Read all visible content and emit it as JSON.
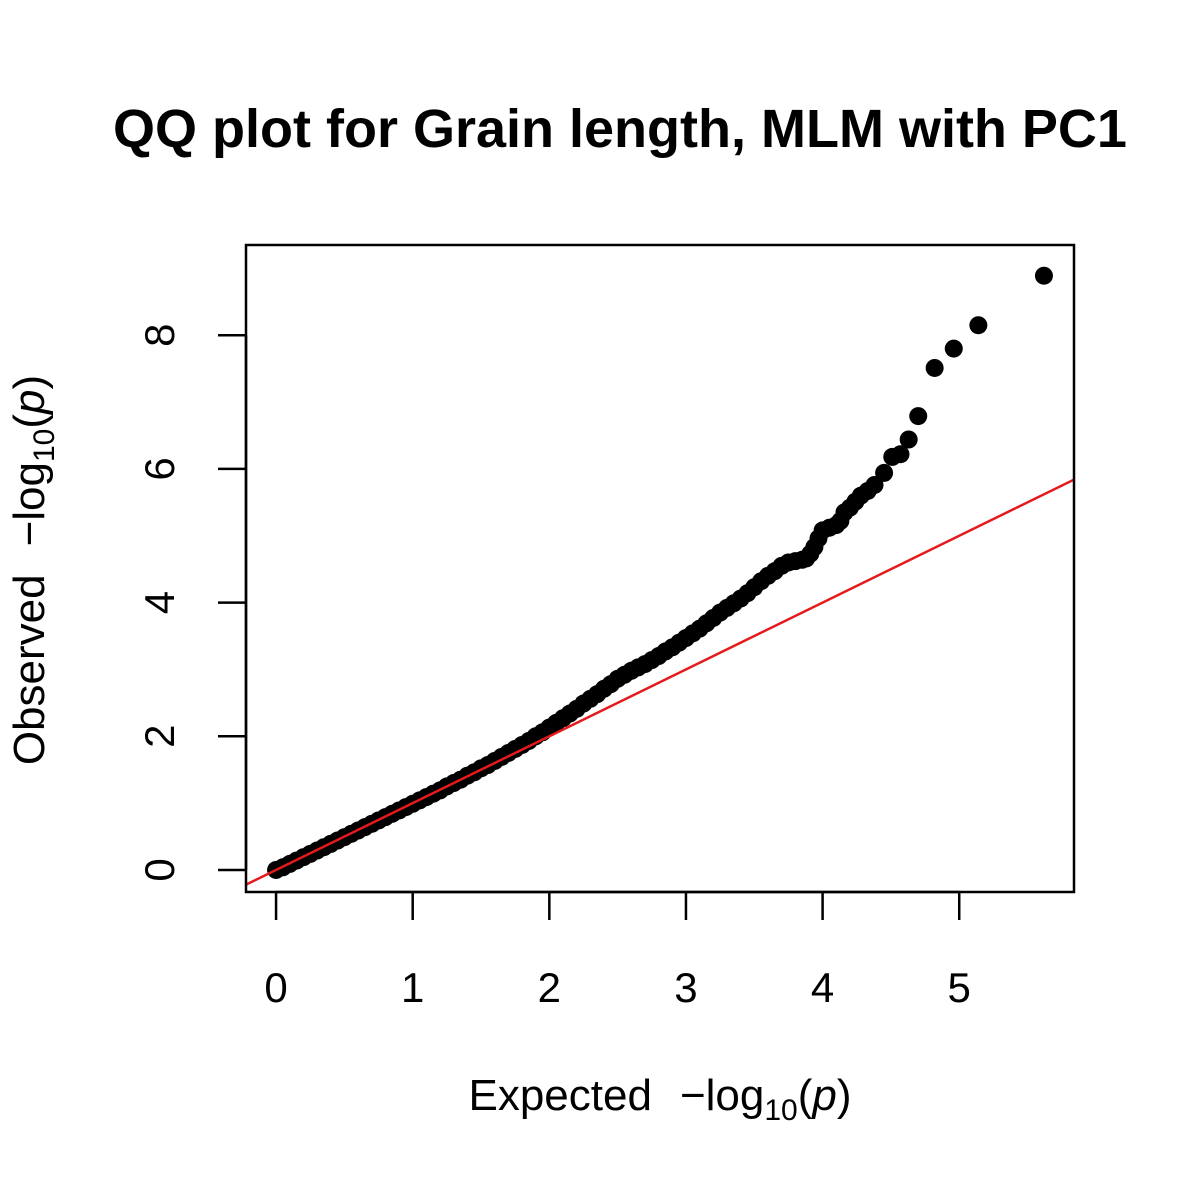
{
  "chart_data": {
    "type": "scatter",
    "title": "QQ plot for Grain length, MLM with PC1",
    "xlabel": {
      "prefix": "Expected",
      "minus": "−",
      "log": "log",
      "base": "10",
      "open": "(",
      "var": "p",
      "close": ")"
    },
    "ylabel": {
      "prefix": "Observed",
      "minus": "−",
      "log": "log",
      "base": "10",
      "open": "(",
      "var": "p",
      "close": ")"
    },
    "xlim": [
      -0.22,
      5.84
    ],
    "ylim": [
      -0.33,
      9.35
    ],
    "xticks": [
      0,
      1,
      2,
      3,
      4,
      5
    ],
    "yticks": [
      0,
      2,
      4,
      6,
      8
    ],
    "grid": false,
    "reference_line": {
      "slope": 1,
      "intercept": 0,
      "color": "#e41a1c"
    },
    "point_color": "#000000",
    "series": [
      {
        "values": [
          [
            0.0,
            0.0
          ],
          [
            0.05,
            0.04
          ],
          [
            0.1,
            0.09
          ],
          [
            0.15,
            0.14
          ],
          [
            0.2,
            0.19
          ],
          [
            0.25,
            0.24
          ],
          [
            0.3,
            0.29
          ],
          [
            0.35,
            0.34
          ],
          [
            0.4,
            0.39
          ],
          [
            0.45,
            0.44
          ],
          [
            0.5,
            0.49
          ],
          [
            0.55,
            0.54
          ],
          [
            0.6,
            0.59
          ],
          [
            0.65,
            0.64
          ],
          [
            0.7,
            0.69
          ],
          [
            0.75,
            0.74
          ],
          [
            0.8,
            0.79
          ],
          [
            0.85,
            0.84
          ],
          [
            0.9,
            0.89
          ],
          [
            0.95,
            0.94
          ],
          [
            1.0,
            0.99
          ],
          [
            1.05,
            1.04
          ],
          [
            1.1,
            1.09
          ],
          [
            1.15,
            1.14
          ],
          [
            1.2,
            1.19
          ],
          [
            1.25,
            1.25
          ],
          [
            1.3,
            1.3
          ],
          [
            1.35,
            1.35
          ],
          [
            1.4,
            1.41
          ],
          [
            1.45,
            1.46
          ],
          [
            1.5,
            1.52
          ],
          [
            1.55,
            1.57
          ],
          [
            1.6,
            1.63
          ],
          [
            1.65,
            1.69
          ],
          [
            1.7,
            1.75
          ],
          [
            1.75,
            1.81
          ],
          [
            1.8,
            1.87
          ],
          [
            1.85,
            1.93
          ],
          [
            1.9,
            2.0
          ],
          [
            1.95,
            2.06
          ],
          [
            2.0,
            2.13
          ],
          [
            2.05,
            2.2
          ],
          [
            2.1,
            2.27
          ],
          [
            2.15,
            2.34
          ],
          [
            2.2,
            2.41
          ],
          [
            2.25,
            2.49
          ],
          [
            2.3,
            2.56
          ],
          [
            2.35,
            2.63
          ],
          [
            2.4,
            2.71
          ],
          [
            2.45,
            2.78
          ],
          [
            2.5,
            2.86
          ],
          [
            2.55,
            2.92
          ],
          [
            2.6,
            2.98
          ],
          [
            2.65,
            3.03
          ],
          [
            2.7,
            3.08
          ],
          [
            2.75,
            3.14
          ],
          [
            2.8,
            3.2
          ],
          [
            2.85,
            3.27
          ],
          [
            2.9,
            3.33
          ],
          [
            2.95,
            3.4
          ],
          [
            3.0,
            3.47
          ],
          [
            3.05,
            3.54
          ],
          [
            3.1,
            3.61
          ],
          [
            3.15,
            3.69
          ],
          [
            3.2,
            3.77
          ],
          [
            3.25,
            3.85
          ],
          [
            3.3,
            3.92
          ],
          [
            3.35,
            3.99
          ],
          [
            3.4,
            4.06
          ],
          [
            3.45,
            4.14
          ],
          [
            3.5,
            4.23
          ],
          [
            3.55,
            4.32
          ],
          [
            3.6,
            4.4
          ],
          [
            3.65,
            4.47
          ],
          [
            3.7,
            4.55
          ],
          [
            3.75,
            4.6
          ],
          [
            3.8,
            4.62
          ],
          [
            3.85,
            4.64
          ],
          [
            3.88,
            4.66
          ],
          [
            3.91,
            4.73
          ],
          [
            3.94,
            4.83
          ],
          [
            3.97,
            4.96
          ],
          [
            4.0,
            5.08
          ],
          [
            4.05,
            5.12
          ],
          [
            4.1,
            5.16
          ],
          [
            4.13,
            5.22
          ],
          [
            4.16,
            5.35
          ],
          [
            4.2,
            5.42
          ],
          [
            4.24,
            5.51
          ],
          [
            4.28,
            5.6
          ],
          [
            4.33,
            5.67
          ],
          [
            4.38,
            5.76
          ],
          [
            4.45,
            5.94
          ],
          [
            4.51,
            6.18
          ],
          [
            4.57,
            6.22
          ],
          [
            4.63,
            6.44
          ],
          [
            4.7,
            6.79
          ],
          [
            4.82,
            7.51
          ],
          [
            4.96,
            7.8
          ],
          [
            5.14,
            8.15
          ],
          [
            5.62,
            8.89
          ]
        ]
      }
    ]
  }
}
